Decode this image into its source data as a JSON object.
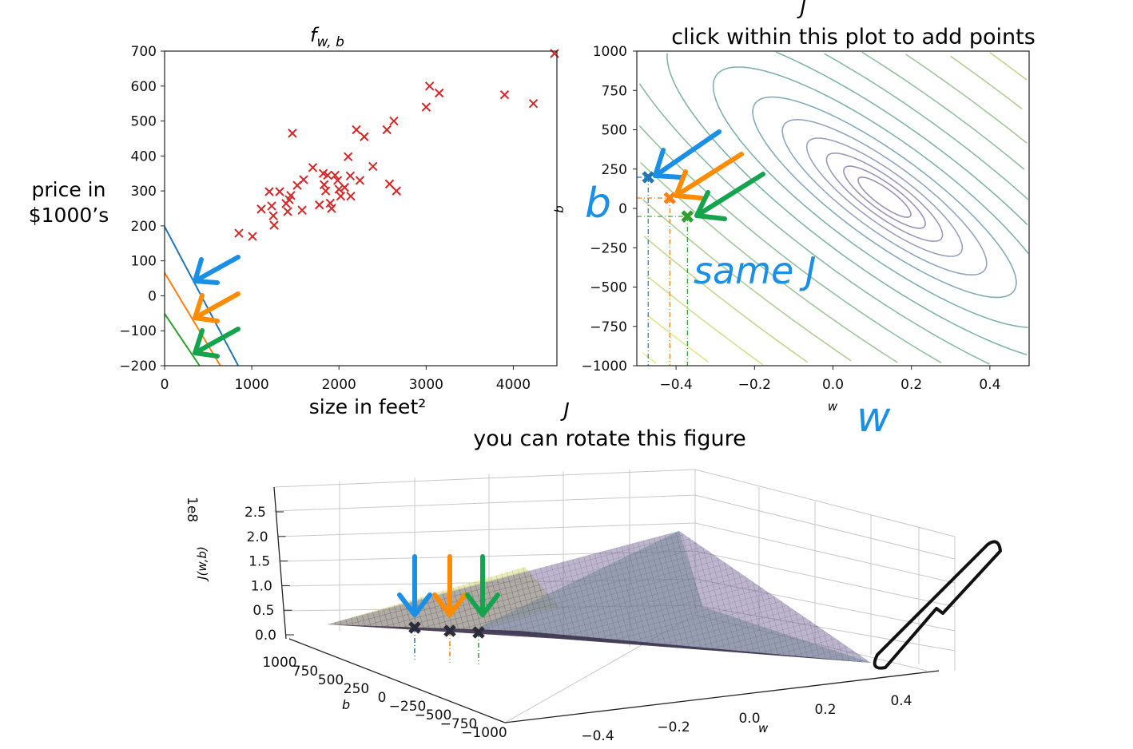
{
  "chart_data": [
    {
      "type": "scatter",
      "title": "f_{w,b}",
      "title_main": "f",
      "title_sub": "w, b",
      "xlabel": "size in feet²",
      "ylabel_line1": "price in",
      "ylabel_line2": "$1000’s",
      "xlim": [
        0,
        4500
      ],
      "ylim": [
        -200,
        700
      ],
      "xticks": [
        "0",
        "1000",
        "2000",
        "3000",
        "4000"
      ],
      "yticks": [
        "700",
        "600",
        "500",
        "400",
        "300",
        "200",
        "100",
        "0",
        "−100",
        "−200"
      ],
      "marker": "x",
      "marker_color": "#d62728",
      "points": [
        [
          1466,
          465
        ],
        [
          852,
          179
        ],
        [
          1008,
          170
        ],
        [
          1109,
          248
        ],
        [
          1201,
          298
        ],
        [
          1320,
          298
        ],
        [
          1228,
          257
        ],
        [
          1247,
          229
        ],
        [
          1256,
          202
        ],
        [
          1412,
          241
        ],
        [
          1393,
          264
        ],
        [
          1430,
          275
        ],
        [
          1448,
          287
        ],
        [
          1577,
          245
        ],
        [
          1522,
          316
        ],
        [
          1595,
          332
        ],
        [
          1700,
          367
        ],
        [
          1775,
          260
        ],
        [
          1820,
          350
        ],
        [
          1830,
          318
        ],
        [
          1848,
          300
        ],
        [
          1870,
          345
        ],
        [
          1900,
          265
        ],
        [
          1915,
          250
        ],
        [
          1955,
          345
        ],
        [
          1985,
          330
        ],
        [
          2000,
          305
        ],
        [
          2020,
          285
        ],
        [
          2065,
          310
        ],
        [
          2105,
          398
        ],
        [
          2130,
          343
        ],
        [
          2135,
          285
        ],
        [
          2200,
          475
        ],
        [
          2290,
          455
        ],
        [
          2240,
          330
        ],
        [
          2390,
          370
        ],
        [
          2550,
          475
        ],
        [
          2630,
          500
        ],
        [
          2580,
          320
        ],
        [
          2660,
          300
        ],
        [
          3000,
          540
        ],
        [
          3040,
          600
        ],
        [
          3150,
          580
        ],
        [
          3900,
          575
        ],
        [
          4230,
          550
        ],
        [
          4500,
          700
        ]
      ],
      "lines": [
        {
          "w": -0.471,
          "b": 198,
          "color": "#1f77b4"
        },
        {
          "w": -0.416,
          "b": 66,
          "color": "#ff7f0e"
        },
        {
          "w": -0.371,
          "b": -51,
          "color": "#2ca02c"
        }
      ],
      "grid": false
    },
    {
      "type": "contour",
      "title_top": "J",
      "title": "click within this plot to add points",
      "xlabel": "w",
      "ylabel": "b",
      "xlim": [
        -0.5,
        0.5
      ],
      "ylim": [
        -1000,
        1000
      ],
      "xticks": [
        "−0.4",
        "−0.2",
        "0.0",
        "0.2",
        "0.4"
      ],
      "yticks": [
        "1000",
        "750",
        "500",
        "250",
        "0",
        "−250",
        "−500",
        "−750",
        "−1000"
      ],
      "colormap": "viridis",
      "selected_points": [
        {
          "w": -0.471,
          "b": 198,
          "color": "#1f77b4"
        },
        {
          "w": -0.416,
          "b": 66,
          "color": "#ff7f0e"
        },
        {
          "w": -0.371,
          "b": -51,
          "color": "#2ca02c"
        }
      ],
      "grid": false
    },
    {
      "type": "surface3d",
      "title_top": "J",
      "title": "you can rotate this figure",
      "xlabel": "w",
      "ylabel": "b",
      "zlabel": "J(w,b)",
      "z_offset_label": "1e8",
      "xticks": [
        "−0.4",
        "−0.2",
        "0.0",
        "0.2",
        "0.4"
      ],
      "yticks": [
        "1000",
        "750",
        "500",
        "250",
        "0",
        "−250",
        "−500",
        "−750",
        "−1000"
      ],
      "zticks": [
        "2.5",
        "2.0",
        "1.5",
        "1.0",
        "0.5",
        "0.0"
      ],
      "colormap": "viridis"
    }
  ],
  "annotations": {
    "b_label": "b",
    "same_j": "same J",
    "w_label": "w",
    "arrow_colors": [
      "#1a8fe6",
      "#ff8c00",
      "#14a44d"
    ]
  }
}
